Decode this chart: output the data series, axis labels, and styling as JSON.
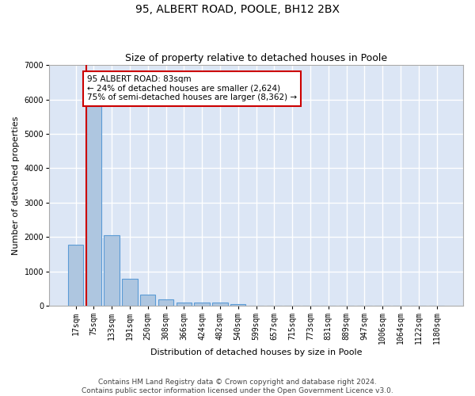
{
  "title": "95, ALBERT ROAD, POOLE, BH12 2BX",
  "subtitle": "Size of property relative to detached houses in Poole",
  "xlabel": "Distribution of detached houses by size in Poole",
  "ylabel": "Number of detached properties",
  "categories": [
    "17sqm",
    "75sqm",
    "133sqm",
    "191sqm",
    "250sqm",
    "308sqm",
    "366sqm",
    "424sqm",
    "482sqm",
    "540sqm",
    "599sqm",
    "657sqm",
    "715sqm",
    "773sqm",
    "831sqm",
    "889sqm",
    "947sqm",
    "1006sqm",
    "1064sqm",
    "1122sqm",
    "1180sqm"
  ],
  "values": [
    1780,
    5800,
    2050,
    800,
    340,
    190,
    110,
    110,
    95,
    65,
    0,
    0,
    0,
    0,
    0,
    0,
    0,
    0,
    0,
    0,
    0
  ],
  "bar_color": "#aec6e0",
  "bar_edge_color": "#5b9bd5",
  "property_line_color": "#cc0000",
  "annotation_text": "95 ALBERT ROAD: 83sqm\n← 24% of detached houses are smaller (2,624)\n75% of semi-detached houses are larger (8,362) →",
  "annotation_box_color": "#ffffff",
  "annotation_box_edge": "#cc0000",
  "ylim": [
    0,
    7000
  ],
  "yticks": [
    0,
    1000,
    2000,
    3000,
    4000,
    5000,
    6000,
    7000
  ],
  "fig_background_color": "#ffffff",
  "plot_background_color": "#dce6f5",
  "grid_color": "#ffffff",
  "footer_line1": "Contains HM Land Registry data © Crown copyright and database right 2024.",
  "footer_line2": "Contains public sector information licensed under the Open Government Licence v3.0.",
  "title_fontsize": 10,
  "subtitle_fontsize": 9,
  "axis_label_fontsize": 8,
  "tick_fontsize": 7,
  "annotation_fontsize": 7.5,
  "footer_fontsize": 6.5
}
